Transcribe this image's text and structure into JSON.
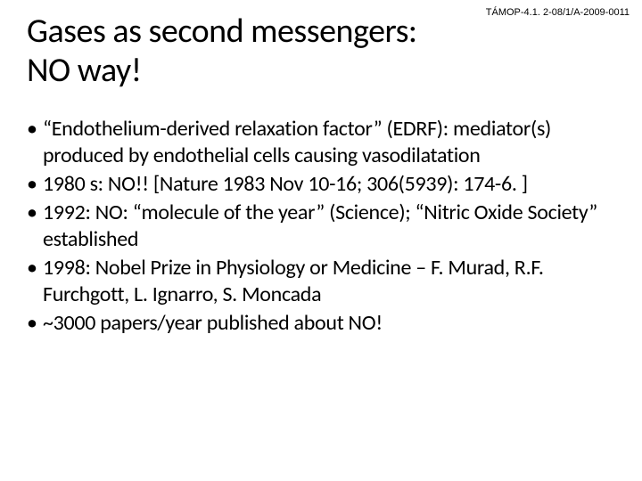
{
  "header_code": "TÁMOP-4.1. 2-08/1/A-2009-0011",
  "title": "Gases as second messengers: NO way!",
  "bullets": [
    "“Endothelium-derived relaxation factor” (EDRF): mediator(s) produced by endothelial cells causing vasodilatation",
    "1980 s: NO!! [Nature 1983 Nov 10-16; 306(5939): 174-6. ]",
    "1992: NO: “molecule of the year” (Science); “Nitric Oxide Society” established",
    "1998: Nobel Prize in Physiology or Medicine – F. Murad, R.F. Furchgott, L. Ignarro, S. Moncada",
    "~3000 papers/year published about NO!"
  ],
  "bullet_marker": "•",
  "colors": {
    "background": "#ffffff",
    "text": "#000000"
  },
  "typography": {
    "title_fontsize": 38,
    "body_fontsize": 24,
    "header_fontsize": 11,
    "font_family": "Calibri, Arial, sans-serif"
  }
}
